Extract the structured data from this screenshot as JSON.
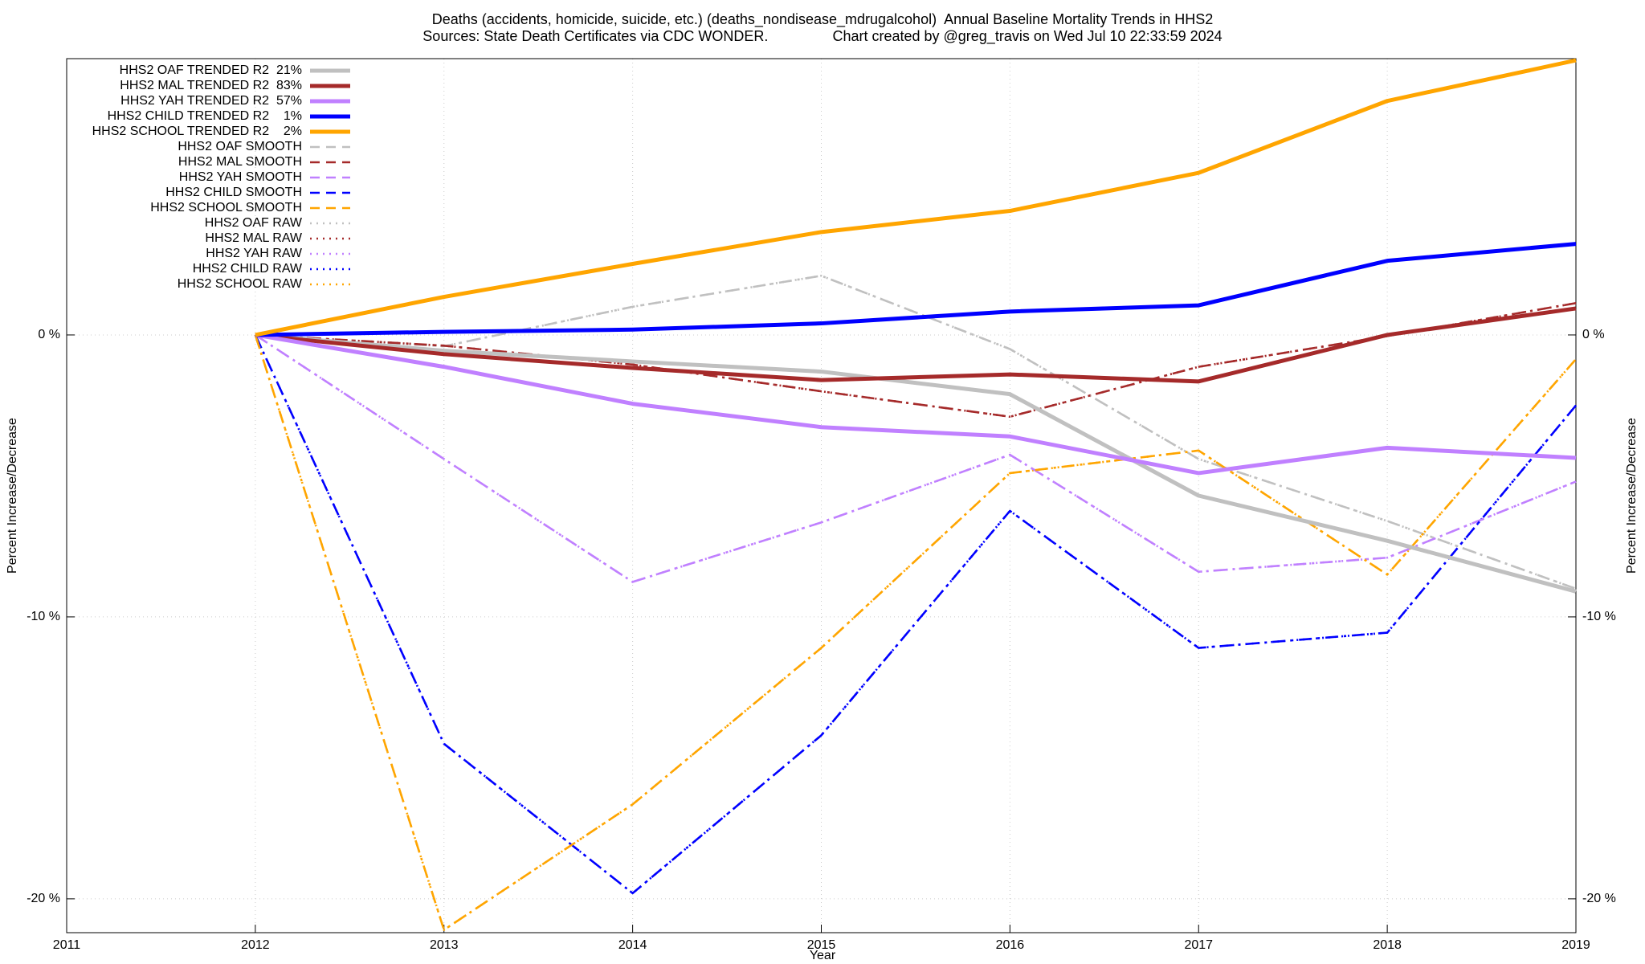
{
  "chart_data": {
    "type": "line",
    "title": "Deaths (accidents, homicide, suicide, etc.) (deaths_nondisease_mdrugalcohol)  Annual Baseline Mortality Trends in HHS2",
    "subtitle": "Sources: State Death Certificates via CDC WONDER.                Chart created by @greg_travis on Wed Jul 10 22:33:59 2024",
    "xlabel": "Year",
    "ylabel": "Percent Increase/Decrease",
    "y2label": "Percent Increase/Decrease",
    "x": [
      2012,
      2013,
      2014,
      2015,
      2016,
      2017,
      2018,
      2019
    ],
    "xlim": [
      2011,
      2019
    ],
    "xticks": [
      2011,
      2012,
      2013,
      2014,
      2015,
      2016,
      2017,
      2018,
      2019
    ],
    "ylim": [
      -21.2,
      9.8
    ],
    "yticks": [
      {
        "value": 0,
        "label": "0 %"
      },
      {
        "value": -10,
        "label": "-10 %"
      },
      {
        "value": -20,
        "label": "-20 %"
      }
    ],
    "grid": true,
    "legend": "top-left",
    "series": [
      {
        "name": "HHS2 OAF TRENDED R2  21%",
        "color": "#c0c0c0",
        "style": "solid",
        "values": [
          0,
          -0.56,
          -0.94,
          -1.3,
          -2.1,
          -5.7,
          -7.3,
          -9.1
        ]
      },
      {
        "name": "HHS2 MAL TRENDED R2  83%",
        "color": "#a52a2a",
        "style": "solid",
        "values": [
          0,
          -0.68,
          -1.17,
          -1.6,
          -1.4,
          -1.65,
          0,
          0.94
        ]
      },
      {
        "name": "HHS2 YAH TRENDED R2  57%",
        "color": "#c080ff",
        "style": "solid",
        "values": [
          0,
          -1.13,
          -2.44,
          -3.27,
          -3.6,
          -4.9,
          -4.0,
          -4.36
        ]
      },
      {
        "name": "HHS2 CHILD TRENDED R2    1%",
        "color": "#0000ff",
        "style": "solid",
        "values": [
          0,
          0.11,
          0.19,
          0.41,
          0.83,
          1.05,
          2.63,
          3.23
        ]
      },
      {
        "name": "HHS2 SCHOOL TRENDED R2    2%",
        "color": "#ffa500",
        "style": "solid",
        "values": [
          0,
          1.35,
          2.52,
          3.65,
          4.4,
          5.75,
          8.3,
          9.74
        ]
      },
      {
        "name": "HHS2 OAF SMOOTH",
        "color": "#c0c0c0",
        "style": "dashdot",
        "values": [
          0,
          -0.4,
          1.0,
          2.1,
          -0.5,
          -4.4,
          -6.6,
          -9.0
        ]
      },
      {
        "name": "HHS2 MAL SMOOTH",
        "color": "#a52a2a",
        "style": "dashdot",
        "values": [
          0,
          -0.38,
          -1.05,
          -2.0,
          -2.9,
          -1.13,
          -0.04,
          1.13
        ]
      },
      {
        "name": "HHS2 YAH SMOOTH",
        "color": "#c080ff",
        "style": "dashdot",
        "values": [
          0,
          -4.4,
          -8.76,
          -6.65,
          -4.25,
          -8.4,
          -7.9,
          -5.2
        ]
      },
      {
        "name": "HHS2 CHILD SMOOTH",
        "color": "#0000ff",
        "style": "dashdot",
        "values": [
          0,
          -14.5,
          -19.8,
          -14.2,
          -6.24,
          -11.1,
          -10.56,
          -2.5
        ]
      },
      {
        "name": "HHS2 SCHOOL SMOOTH",
        "color": "#ffa500",
        "style": "dashdot",
        "values": [
          0,
          -21.1,
          -16.65,
          -11.1,
          -4.9,
          -4.1,
          -8.5,
          -0.86
        ]
      },
      {
        "name": "HHS2 OAF RAW",
        "color": "#c0c0c0",
        "style": "dot",
        "values": [
          0,
          -0.4,
          1.0,
          2.1,
          -0.5,
          -4.4,
          -6.6,
          -9.0
        ]
      },
      {
        "name": "HHS2 MAL RAW",
        "color": "#a52a2a",
        "style": "dot",
        "values": [
          0,
          -0.38,
          -1.05,
          -2.0,
          -2.9,
          -1.13,
          -0.04,
          1.13
        ]
      },
      {
        "name": "HHS2 YAH RAW",
        "color": "#c080ff",
        "style": "dot",
        "values": [
          0,
          -4.4,
          -8.76,
          -6.65,
          -4.25,
          -8.4,
          -7.9,
          -5.2
        ]
      },
      {
        "name": "HHS2 CHILD RAW",
        "color": "#0000ff",
        "style": "dot",
        "values": [
          0,
          -14.5,
          -19.8,
          -14.2,
          -6.24,
          -11.1,
          -10.56,
          -2.5
        ]
      },
      {
        "name": "HHS2 SCHOOL RAW",
        "color": "#ffa500",
        "style": "dot",
        "values": [
          0,
          -21.1,
          -16.65,
          -11.1,
          -4.9,
          -4.1,
          -8.5,
          -0.86
        ]
      }
    ]
  }
}
